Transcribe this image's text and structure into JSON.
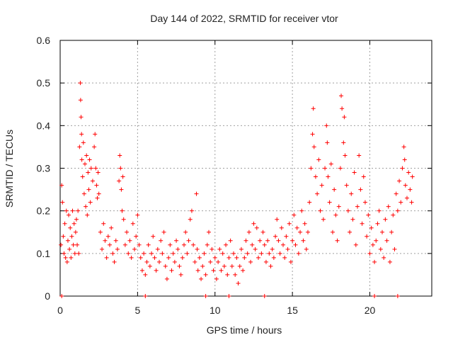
{
  "chart_data": {
    "type": "scatter",
    "title": "Day 144 of 2022, SRMTID for receiver vtor",
    "xlabel": "GPS time / hours",
    "ylabel": "SRMTID / TECUs",
    "xlim": [
      0,
      24
    ],
    "ylim": [
      0,
      0.6
    ],
    "xticks": [
      0,
      5,
      10,
      15,
      20
    ],
    "xtick_labels": [
      "0",
      "5",
      "10",
      "15",
      "20"
    ],
    "yticks": [
      0,
      0.1,
      0.2,
      0.3,
      0.4,
      0.5,
      0.6
    ],
    "ytick_labels": [
      "0",
      "0.1",
      "0.2",
      "0.3",
      "0.4",
      "0.5",
      "0.6"
    ],
    "grid": true,
    "marker": "+",
    "color": "#ff0000",
    "series": [
      {
        "name": "SRMTID",
        "points": [
          [
            0.05,
            0.12
          ],
          [
            0.1,
            0.26
          ],
          [
            0.15,
            0.22
          ],
          [
            0.2,
            0.14
          ],
          [
            0.25,
            0.1
          ],
          [
            0.3,
            0.17
          ],
          [
            0.35,
            0.09
          ],
          [
            0.4,
            0.2
          ],
          [
            0.45,
            0.08
          ],
          [
            0.5,
            0.13
          ],
          [
            0.55,
            0.19
          ],
          [
            0.6,
            0.11
          ],
          [
            0.65,
            0.16
          ],
          [
            0.7,
            0.09
          ],
          [
            0.75,
            0.14
          ],
          [
            0.8,
            0.2
          ],
          [
            0.85,
            0.12
          ],
          [
            0.9,
            0.17
          ],
          [
            0.95,
            0.1
          ],
          [
            1.0,
            0.15
          ],
          [
            1.05,
            0.18
          ],
          [
            1.1,
            0.12
          ],
          [
            1.15,
            0.2
          ],
          [
            1.2,
            0.1
          ],
          [
            1.25,
            0.35
          ],
          [
            1.3,
            0.5
          ],
          [
            1.32,
            0.46
          ],
          [
            1.35,
            0.42
          ],
          [
            1.38,
            0.38
          ],
          [
            1.4,
            0.32
          ],
          [
            1.45,
            0.28
          ],
          [
            1.5,
            0.36
          ],
          [
            1.55,
            0.24
          ],
          [
            1.6,
            0.31
          ],
          [
            1.65,
            0.21
          ],
          [
            1.7,
            0.33
          ],
          [
            1.75,
            0.19
          ],
          [
            1.8,
            0.29
          ],
          [
            1.85,
            0.25
          ],
          [
            1.9,
            0.32
          ],
          [
            1.95,
            0.22
          ],
          [
            2.0,
            0.3
          ],
          [
            2.1,
            0.27
          ],
          [
            2.2,
            0.35
          ],
          [
            2.25,
            0.38
          ],
          [
            2.3,
            0.3
          ],
          [
            2.35,
            0.26
          ],
          [
            2.4,
            0.23
          ],
          [
            2.45,
            0.29
          ],
          [
            2.5,
            0.24
          ],
          [
            2.6,
            0.15
          ],
          [
            2.7,
            0.11
          ],
          [
            2.8,
            0.17
          ],
          [
            2.9,
            0.13
          ],
          [
            3.0,
            0.09
          ],
          [
            3.1,
            0.14
          ],
          [
            3.2,
            0.12
          ],
          [
            3.3,
            0.16
          ],
          [
            3.4,
            0.1
          ],
          [
            3.5,
            0.08
          ],
          [
            3.6,
            0.13
          ],
          [
            3.7,
            0.11
          ],
          [
            3.8,
            0.27
          ],
          [
            3.85,
            0.33
          ],
          [
            3.9,
            0.3
          ],
          [
            3.95,
            0.25
          ],
          [
            4.0,
            0.2
          ],
          [
            4.05,
            0.28
          ],
          [
            4.1,
            0.18
          ],
          [
            4.2,
            0.12
          ],
          [
            4.3,
            0.15
          ],
          [
            4.4,
            0.1
          ],
          [
            4.5,
            0.13
          ],
          [
            4.6,
            0.09
          ],
          [
            4.7,
            0.17
          ],
          [
            4.8,
            0.11
          ],
          [
            4.9,
            0.14
          ],
          [
            5.0,
            0.19
          ],
          [
            5.1,
            0.12
          ],
          [
            5.2,
            0.09
          ],
          [
            5.3,
            0.06
          ],
          [
            5.4,
            0.1
          ],
          [
            5.5,
            0.05
          ],
          [
            5.6,
            0.08
          ],
          [
            5.7,
            0.12
          ],
          [
            5.8,
            0.07
          ],
          [
            5.9,
            0.1
          ],
          [
            6.0,
            0.14
          ],
          [
            6.1,
            0.09
          ],
          [
            6.2,
            0.06
          ],
          [
            6.3,
            0.11
          ],
          [
            6.4,
            0.08
          ],
          [
            6.5,
            0.13
          ],
          [
            6.6,
            0.1
          ],
          [
            6.7,
            0.15
          ],
          [
            6.8,
            0.07
          ],
          [
            6.9,
            0.04
          ],
          [
            7.0,
            0.09
          ],
          [
            7.1,
            0.12
          ],
          [
            7.2,
            0.06
          ],
          [
            7.3,
            0.1
          ],
          [
            7.4,
            0.08
          ],
          [
            7.5,
            0.13
          ],
          [
            7.6,
            0.11
          ],
          [
            7.7,
            0.07
          ],
          [
            7.8,
            0.05
          ],
          [
            7.9,
            0.09
          ],
          [
            8.0,
            0.12
          ],
          [
            8.1,
            0.15
          ],
          [
            8.2,
            0.1
          ],
          [
            8.3,
            0.13
          ],
          [
            8.4,
            0.18
          ],
          [
            8.5,
            0.2
          ],
          [
            8.6,
            0.12
          ],
          [
            8.7,
            0.08
          ],
          [
            8.8,
            0.24
          ],
          [
            8.85,
            0.11
          ],
          [
            8.9,
            0.06
          ],
          [
            9.0,
            0.09
          ],
          [
            9.1,
            0.04
          ],
          [
            9.2,
            0.07
          ],
          [
            9.3,
            0.1
          ],
          [
            9.4,
            0.05
          ],
          [
            9.5,
            0.12
          ],
          [
            9.6,
            0.15
          ],
          [
            9.7,
            0.08
          ],
          [
            9.8,
            0.11
          ],
          [
            9.9,
            0.06
          ],
          [
            10.0,
            0.09
          ],
          [
            10.1,
            0.04
          ],
          [
            10.2,
            0.08
          ],
          [
            10.3,
            0.11
          ],
          [
            10.4,
            0.06
          ],
          [
            10.5,
            0.1
          ],
          [
            10.6,
            0.07
          ],
          [
            10.7,
            0.12
          ],
          [
            10.8,
            0.05
          ],
          [
            10.9,
            0.09
          ],
          [
            11.0,
            0.13
          ],
          [
            11.1,
            0.07
          ],
          [
            11.2,
            0.1
          ],
          [
            11.3,
            0.05
          ],
          [
            11.4,
            0.09
          ],
          [
            11.5,
            0.03
          ],
          [
            11.6,
            0.07
          ],
          [
            11.7,
            0.11
          ],
          [
            11.8,
            0.06
          ],
          [
            11.9,
            0.09
          ],
          [
            12.0,
            0.13
          ],
          [
            12.1,
            0.1
          ],
          [
            12.2,
            0.15
          ],
          [
            12.3,
            0.08
          ],
          [
            12.4,
            0.12
          ],
          [
            12.5,
            0.17
          ],
          [
            12.6,
            0.11
          ],
          [
            12.7,
            0.16
          ],
          [
            12.8,
            0.09
          ],
          [
            12.9,
            0.13
          ],
          [
            13.0,
            0.1
          ],
          [
            13.1,
            0.15
          ],
          [
            13.2,
            0.12
          ],
          [
            13.3,
            0.08
          ],
          [
            13.4,
            0.13
          ],
          [
            13.5,
            0.1
          ],
          [
            13.6,
            0.07
          ],
          [
            13.7,
            0.11
          ],
          [
            13.8,
            0.09
          ],
          [
            13.9,
            0.14
          ],
          [
            14.0,
            0.18
          ],
          [
            14.1,
            0.13
          ],
          [
            14.2,
            0.1
          ],
          [
            14.3,
            0.16
          ],
          [
            14.4,
            0.12
          ],
          [
            14.5,
            0.09
          ],
          [
            14.6,
            0.14
          ],
          [
            14.7,
            0.11
          ],
          [
            14.8,
            0.17
          ],
          [
            14.9,
            0.08
          ],
          [
            15.0,
            0.13
          ],
          [
            15.1,
            0.19
          ],
          [
            15.2,
            0.12
          ],
          [
            15.3,
            0.16
          ],
          [
            15.4,
            0.1
          ],
          [
            15.5,
            0.15
          ],
          [
            15.6,
            0.2
          ],
          [
            15.7,
            0.13
          ],
          [
            15.8,
            0.17
          ],
          [
            15.9,
            0.11
          ],
          [
            16.0,
            0.15
          ],
          [
            16.1,
            0.22
          ],
          [
            16.2,
            0.3
          ],
          [
            16.3,
            0.38
          ],
          [
            16.35,
            0.44
          ],
          [
            16.4,
            0.35
          ],
          [
            16.5,
            0.28
          ],
          [
            16.6,
            0.24
          ],
          [
            16.7,
            0.32
          ],
          [
            16.8,
            0.2
          ],
          [
            16.9,
            0.26
          ],
          [
            17.0,
            0.18
          ],
          [
            17.1,
            0.3
          ],
          [
            17.2,
            0.4
          ],
          [
            17.25,
            0.36
          ],
          [
            17.3,
            0.28
          ],
          [
            17.4,
            0.22
          ],
          [
            17.5,
            0.31
          ],
          [
            17.6,
            0.15
          ],
          [
            17.7,
            0.25
          ],
          [
            17.8,
            0.19
          ],
          [
            17.9,
            0.13
          ],
          [
            18.0,
            0.21
          ],
          [
            18.1,
            0.3
          ],
          [
            18.15,
            0.47
          ],
          [
            18.2,
            0.44
          ],
          [
            18.3,
            0.36
          ],
          [
            18.35,
            0.42
          ],
          [
            18.4,
            0.33
          ],
          [
            18.5,
            0.26
          ],
          [
            18.6,
            0.2
          ],
          [
            18.7,
            0.15
          ],
          [
            18.8,
            0.24
          ],
          [
            18.9,
            0.18
          ],
          [
            19.0,
            0.29
          ],
          [
            19.1,
            0.12
          ],
          [
            19.2,
            0.21
          ],
          [
            19.3,
            0.33
          ],
          [
            19.4,
            0.25
          ],
          [
            19.5,
            0.17
          ],
          [
            19.6,
            0.28
          ],
          [
            19.7,
            0.22
          ],
          [
            19.8,
            0.14
          ],
          [
            19.9,
            0.19
          ],
          [
            20.0,
            0.1
          ],
          [
            20.1,
            0.16
          ],
          [
            20.2,
            0.12
          ],
          [
            20.3,
            0.08
          ],
          [
            20.4,
            0.13
          ],
          [
            20.5,
            0.17
          ],
          [
            20.6,
            0.2
          ],
          [
            20.7,
            0.11
          ],
          [
            20.8,
            0.15
          ],
          [
            20.9,
            0.09
          ],
          [
            21.0,
            0.18
          ],
          [
            21.1,
            0.13
          ],
          [
            21.2,
            0.21
          ],
          [
            21.3,
            0.08
          ],
          [
            21.4,
            0.15
          ],
          [
            21.5,
            0.19
          ],
          [
            21.6,
            0.11
          ],
          [
            21.7,
            0.24
          ],
          [
            21.8,
            0.2
          ],
          [
            21.9,
            0.27
          ],
          [
            22.0,
            0.22
          ],
          [
            22.1,
            0.3
          ],
          [
            22.2,
            0.35
          ],
          [
            22.25,
            0.32
          ],
          [
            22.3,
            0.26
          ],
          [
            22.4,
            0.23
          ],
          [
            22.5,
            0.29
          ],
          [
            22.6,
            0.25
          ],
          [
            22.7,
            0.22
          ],
          [
            22.75,
            0.28
          ],
          [
            0.1,
            0.0
          ],
          [
            5.5,
            0.0
          ],
          [
            9.4,
            0.0
          ],
          [
            10.9,
            0.0
          ],
          [
            13.2,
            0.0
          ],
          [
            20.3,
            0.0
          ],
          [
            21.8,
            0.0
          ]
        ]
      }
    ]
  }
}
